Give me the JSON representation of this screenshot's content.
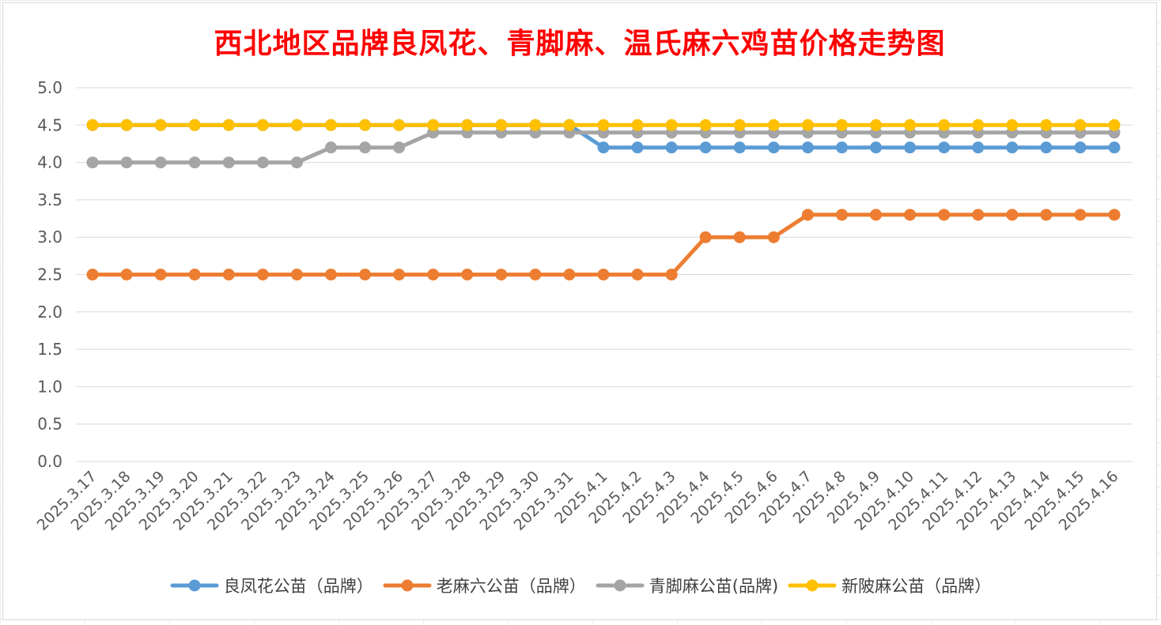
{
  "chart_data": {
    "type": "line",
    "title": "西北地区品牌良凤花、青脚麻、温氏麻六鸡苗价格走势图",
    "categories": [
      "2025.3.17",
      "2025.3.18",
      "2025.3.19",
      "2025.3.20",
      "2025.3.21",
      "2025.3.22",
      "2025.3.23",
      "2025.3.24",
      "2025.3.25",
      "2025.3.26",
      "2025.3.27",
      "2025.3.28",
      "2025.3.29",
      "2025.3.30",
      "2025.3.31",
      "2025.4.1",
      "2025.4.2",
      "2025.4.3",
      "2025.4.4",
      "2025.4.5",
      "2025.4.6",
      "2025.4.7",
      "2025.4.8",
      "2025.4.9",
      "2025.4.10",
      "2025.4.11",
      "2025.4.12",
      "2025.4.13",
      "2025.4.14",
      "2025.4.15",
      "2025.4.16"
    ],
    "ylim": [
      0,
      5
    ],
    "ytick_step": 0.5,
    "yticks": [
      "0.0",
      "0.5",
      "1.0",
      "1.5",
      "2.0",
      "2.5",
      "3.0",
      "3.5",
      "4.0",
      "4.5",
      "5.0"
    ],
    "grid": true,
    "legend_position": "bottom",
    "series": [
      {
        "name": "良凤花公苗（品牌）",
        "color": "#5b9bd5",
        "values": [
          4.5,
          4.5,
          4.5,
          4.5,
          4.5,
          4.5,
          4.5,
          4.5,
          4.5,
          4.5,
          4.5,
          4.5,
          4.5,
          4.5,
          4.5,
          4.2,
          4.2,
          4.2,
          4.2,
          4.2,
          4.2,
          4.2,
          4.2,
          4.2,
          4.2,
          4.2,
          4.2,
          4.2,
          4.2,
          4.2,
          4.2
        ]
      },
      {
        "name": "老麻六公苗（品牌）",
        "color": "#ed7d31",
        "values": [
          2.5,
          2.5,
          2.5,
          2.5,
          2.5,
          2.5,
          2.5,
          2.5,
          2.5,
          2.5,
          2.5,
          2.5,
          2.5,
          2.5,
          2.5,
          2.5,
          2.5,
          2.5,
          3.0,
          3.0,
          3.0,
          3.3,
          3.3,
          3.3,
          3.3,
          3.3,
          3.3,
          3.3,
          3.3,
          3.3,
          3.3
        ]
      },
      {
        "name": "青脚麻公苗(品牌)",
        "color": "#a5a5a5",
        "values": [
          4.0,
          4.0,
          4.0,
          4.0,
          4.0,
          4.0,
          4.0,
          4.2,
          4.2,
          4.2,
          4.4,
          4.4,
          4.4,
          4.4,
          4.4,
          4.4,
          4.4,
          4.4,
          4.4,
          4.4,
          4.4,
          4.4,
          4.4,
          4.4,
          4.4,
          4.4,
          4.4,
          4.4,
          4.4,
          4.4,
          4.4
        ]
      },
      {
        "name": "新陂麻公苗（品牌）",
        "color": "#ffc000",
        "values": [
          4.5,
          4.5,
          4.5,
          4.5,
          4.5,
          4.5,
          4.5,
          4.5,
          4.5,
          4.5,
          4.5,
          4.5,
          4.5,
          4.5,
          4.5,
          4.5,
          4.5,
          4.5,
          4.5,
          4.5,
          4.5,
          4.5,
          4.5,
          4.5,
          4.5,
          4.5,
          4.5,
          4.5,
          4.5,
          4.5,
          4.5
        ]
      }
    ]
  }
}
